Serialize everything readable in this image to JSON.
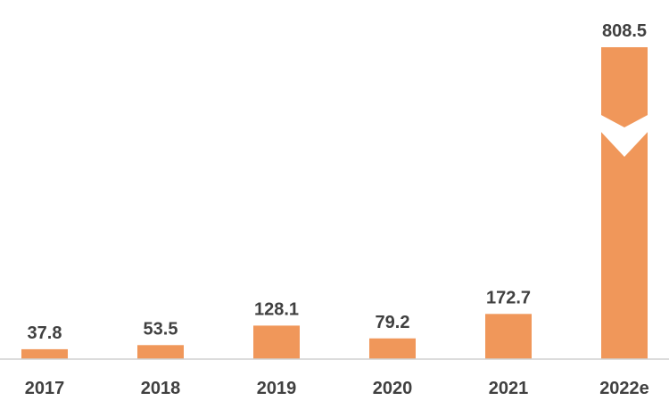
{
  "chart_data": {
    "type": "bar",
    "title": "",
    "xlabel": "",
    "ylabel": "",
    "categories": [
      "2017",
      "2018",
      "2019",
      "2020",
      "2021",
      "2022e"
    ],
    "values": [
      37.8,
      53.5,
      128.1,
      79.2,
      172.7,
      808.5
    ],
    "data_labels": [
      "37.8",
      "53.5",
      "128.1",
      "79.2",
      "172.7",
      "808.5"
    ],
    "broken_axis_bar": "2022e",
    "grid": false,
    "legend": "none",
    "bar_color": "#f0975a",
    "label_color": "#404040"
  }
}
